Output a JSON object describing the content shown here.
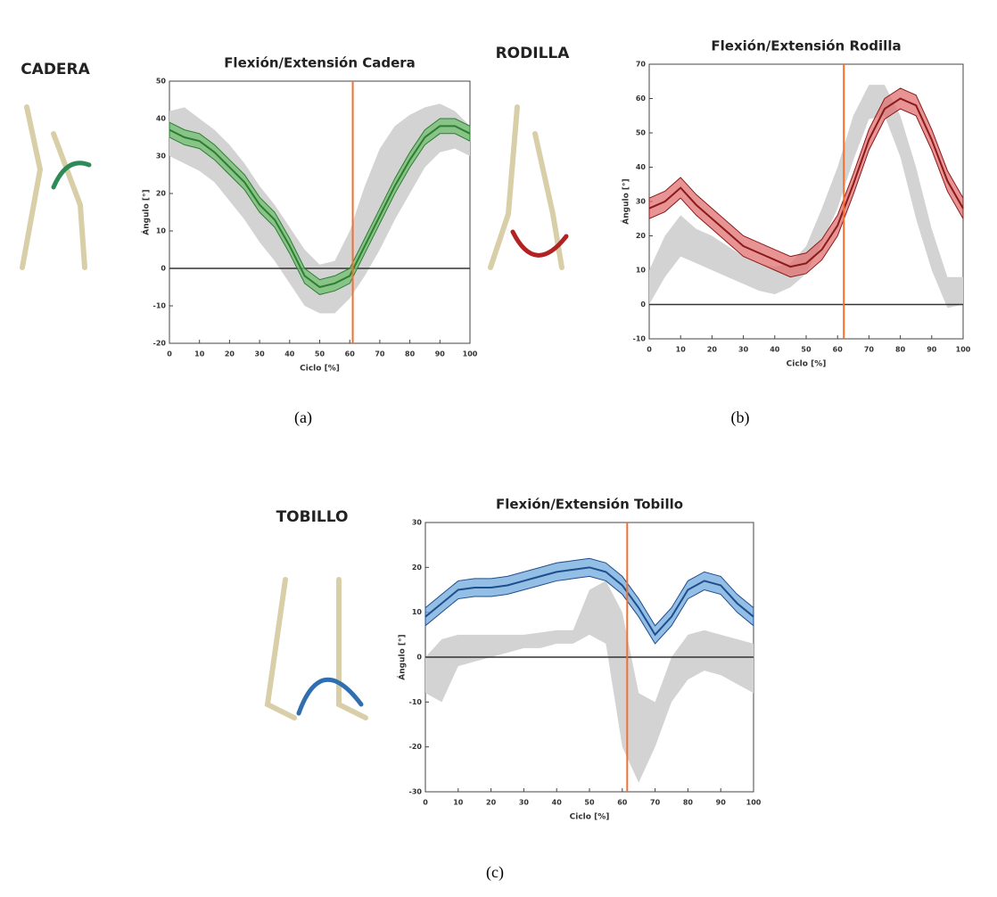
{
  "chart_data": [
    {
      "type": "line",
      "joint": "CADERA",
      "caption": "(a)",
      "title": "Flexión/Extensión Cadera",
      "xlabel": "Ciclo [%]",
      "ylabel": "Ángulo [°]",
      "x": [
        0,
        5,
        10,
        15,
        20,
        25,
        30,
        35,
        40,
        45,
        50,
        55,
        60,
        65,
        70,
        75,
        80,
        85,
        90,
        95,
        100
      ],
      "xlim": [
        0,
        100
      ],
      "xticks": [
        0,
        10,
        20,
        30,
        40,
        50,
        60,
        70,
        80,
        90,
        100
      ],
      "ylim": [
        -20,
        50
      ],
      "yticks": [
        -20,
        -10,
        0,
        10,
        20,
        30,
        40,
        50
      ],
      "vline": 61,
      "vline_color": "#f07030",
      "series": [
        {
          "color": "#2e7d32",
          "fill": "#6fbf6f",
          "values": [
            37,
            35,
            34,
            31,
            27,
            23,
            17,
            13,
            6,
            -2,
            -5,
            -4,
            -2,
            6,
            14,
            22,
            29,
            35,
            38,
            38,
            36
          ],
          "upper": [
            39,
            37,
            36,
            33,
            29,
            25,
            19,
            15,
            8,
            0,
            -3,
            -2,
            0,
            8,
            16,
            24,
            31,
            37,
            40,
            40,
            38
          ],
          "lower": [
            35,
            33,
            32,
            29,
            25,
            21,
            15,
            11,
            4,
            -4,
            -7,
            -6,
            -4,
            4,
            12,
            20,
            27,
            33,
            36,
            36,
            34
          ]
        }
      ],
      "bands": [
        {
          "color": "#d3d3d3",
          "upper": [
            42,
            43,
            40,
            37,
            33,
            28,
            22,
            17,
            11,
            5,
            1,
            2,
            10,
            22,
            32,
            38,
            41,
            43,
            44,
            42,
            38
          ],
          "lower": [
            30,
            28,
            26,
            23,
            18,
            13,
            7,
            2,
            -4,
            -10,
            -12,
            -12,
            -8,
            -2,
            5,
            13,
            20,
            27,
            31,
            32,
            30
          ]
        }
      ]
    },
    {
      "type": "line",
      "joint": "RODILLA",
      "caption": "(b)",
      "title": "Flexión/Extensión Rodilla",
      "xlabel": "Ciclo [%]",
      "ylabel": "Ángulo [°]",
      "x": [
        0,
        5,
        10,
        15,
        20,
        25,
        30,
        35,
        40,
        45,
        50,
        55,
        60,
        65,
        70,
        75,
        80,
        85,
        90,
        95,
        100
      ],
      "xlim": [
        0,
        100
      ],
      "xticks": [
        0,
        10,
        20,
        30,
        40,
        50,
        60,
        70,
        80,
        90,
        100
      ],
      "ylim": [
        -10,
        70
      ],
      "yticks": [
        -10,
        0,
        10,
        20,
        30,
        40,
        50,
        60,
        70
      ],
      "vline": 62,
      "vline_color": "#f07030",
      "series": [
        {
          "color": "#8b1a1a",
          "fill": "#e07070",
          "values": [
            28,
            30,
            34,
            29,
            25,
            21,
            17,
            15,
            13,
            11,
            12,
            16,
            23,
            35,
            48,
            57,
            60,
            58,
            48,
            36,
            28
          ],
          "upper": [
            31,
            33,
            37,
            32,
            28,
            24,
            20,
            18,
            16,
            14,
            15,
            19,
            26,
            38,
            51,
            60,
            63,
            61,
            51,
            39,
            31
          ],
          "lower": [
            25,
            27,
            31,
            26,
            22,
            18,
            14,
            12,
            10,
            8,
            9,
            13,
            20,
            32,
            45,
            54,
            57,
            55,
            45,
            33,
            25
          ]
        }
      ],
      "bands": [
        {
          "color": "#d3d3d3",
          "upper": [
            10,
            20,
            26,
            22,
            20,
            17,
            14,
            12,
            11,
            12,
            17,
            28,
            40,
            55,
            64,
            64,
            55,
            40,
            22,
            8,
            8
          ],
          "lower": [
            0,
            8,
            14,
            12,
            10,
            8,
            6,
            4,
            3,
            5,
            9,
            18,
            28,
            42,
            54,
            55,
            43,
            25,
            10,
            -1,
            0
          ]
        }
      ]
    },
    {
      "type": "line",
      "joint": "TOBILLO",
      "caption": "(c)",
      "title": "Flexión/Extensión Tobillo",
      "xlabel": "Ciclo [%]",
      "ylabel": "Ángulo [°]",
      "x": [
        0,
        5,
        10,
        15,
        20,
        25,
        30,
        35,
        40,
        45,
        50,
        55,
        60,
        65,
        70,
        75,
        80,
        85,
        90,
        95,
        100
      ],
      "xlim": [
        0,
        100
      ],
      "xticks": [
        0,
        10,
        20,
        30,
        40,
        50,
        60,
        70,
        80,
        90,
        100
      ],
      "ylim": [
        -30,
        30
      ],
      "yticks": [
        -30,
        -20,
        -10,
        0,
        10,
        20,
        30
      ],
      "vline": 61.5,
      "vline_color": "#f07030",
      "series": [
        {
          "color": "#1f4e8c",
          "fill": "#6fa8dc",
          "values": [
            9,
            12,
            15,
            15.5,
            15.5,
            16,
            17,
            18,
            19,
            19.5,
            20,
            19,
            16,
            11,
            5,
            9,
            15,
            17,
            16,
            12,
            9
          ],
          "upper": [
            11,
            14,
            17,
            17.5,
            17.5,
            18,
            19,
            20,
            21,
            21.5,
            22,
            21,
            18,
            13,
            7,
            11,
            17,
            19,
            18,
            14,
            11
          ],
          "lower": [
            7,
            10,
            13,
            13.5,
            13.5,
            14,
            15,
            16,
            17,
            17.5,
            18,
            17,
            14,
            9,
            3,
            7,
            13,
            15,
            14,
            10,
            7
          ]
        }
      ],
      "bands": [
        {
          "color": "#d3d3d3",
          "upper": [
            0,
            4,
            5,
            5,
            5,
            5,
            5,
            5.5,
            6,
            6,
            15,
            17,
            10,
            -8,
            -10,
            0,
            5,
            6,
            5,
            4,
            3
          ],
          "lower": [
            -8,
            -10,
            -2,
            -1,
            0,
            1,
            2,
            2,
            3,
            3,
            5,
            3,
            -20,
            -28,
            -20,
            -10,
            -5,
            -3,
            -4,
            -6,
            -8
          ]
        }
      ]
    }
  ]
}
